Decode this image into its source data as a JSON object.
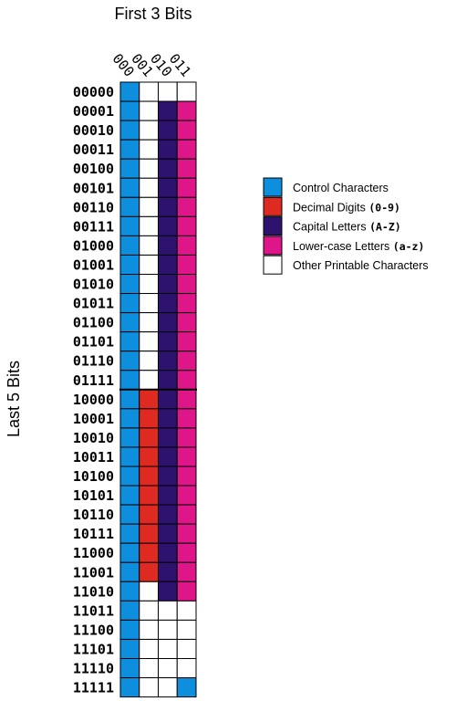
{
  "title_top": "First 3 Bits",
  "title_side": "Last 5 Bits",
  "columns": [
    "000",
    "001",
    "010",
    "011"
  ],
  "rows": [
    "00000",
    "00001",
    "00010",
    "00011",
    "00100",
    "00101",
    "00110",
    "00111",
    "01000",
    "01001",
    "01010",
    "01011",
    "01100",
    "01101",
    "01110",
    "01111",
    "10000",
    "10001",
    "10010",
    "10011",
    "10100",
    "10101",
    "10110",
    "10111",
    "11000",
    "11001",
    "11010",
    "11011",
    "11100",
    "11101",
    "11110",
    "11111"
  ],
  "colors": {
    "control": "#0d8fde",
    "digit": "#df2a22",
    "capital": "#2d136e",
    "lower": "#df1689",
    "other": "#ffffff"
  },
  "grid": [
    [
      "control",
      "other",
      "other",
      "other"
    ],
    [
      "control",
      "other",
      "capital",
      "lower"
    ],
    [
      "control",
      "other",
      "capital",
      "lower"
    ],
    [
      "control",
      "other",
      "capital",
      "lower"
    ],
    [
      "control",
      "other",
      "capital",
      "lower"
    ],
    [
      "control",
      "other",
      "capital",
      "lower"
    ],
    [
      "control",
      "other",
      "capital",
      "lower"
    ],
    [
      "control",
      "other",
      "capital",
      "lower"
    ],
    [
      "control",
      "other",
      "capital",
      "lower"
    ],
    [
      "control",
      "other",
      "capital",
      "lower"
    ],
    [
      "control",
      "other",
      "capital",
      "lower"
    ],
    [
      "control",
      "other",
      "capital",
      "lower"
    ],
    [
      "control",
      "other",
      "capital",
      "lower"
    ],
    [
      "control",
      "other",
      "capital",
      "lower"
    ],
    [
      "control",
      "other",
      "capital",
      "lower"
    ],
    [
      "control",
      "other",
      "capital",
      "lower"
    ],
    [
      "control",
      "digit",
      "capital",
      "lower"
    ],
    [
      "control",
      "digit",
      "capital",
      "lower"
    ],
    [
      "control",
      "digit",
      "capital",
      "lower"
    ],
    [
      "control",
      "digit",
      "capital",
      "lower"
    ],
    [
      "control",
      "digit",
      "capital",
      "lower"
    ],
    [
      "control",
      "digit",
      "capital",
      "lower"
    ],
    [
      "control",
      "digit",
      "capital",
      "lower"
    ],
    [
      "control",
      "digit",
      "capital",
      "lower"
    ],
    [
      "control",
      "digit",
      "capital",
      "lower"
    ],
    [
      "control",
      "digit",
      "capital",
      "lower"
    ],
    [
      "control",
      "other",
      "capital",
      "lower"
    ],
    [
      "control",
      "other",
      "other",
      "other"
    ],
    [
      "control",
      "other",
      "other",
      "other"
    ],
    [
      "control",
      "other",
      "other",
      "other"
    ],
    [
      "control",
      "other",
      "other",
      "other"
    ],
    [
      "control",
      "other",
      "other",
      "control"
    ]
  ],
  "legend": [
    {
      "key": "control",
      "text": "Control Characters",
      "code": ""
    },
    {
      "key": "digit",
      "text": "Decimal Digits ",
      "code": "(0-9)"
    },
    {
      "key": "capital",
      "text": "Capital Letters ",
      "code": "(A-Z)"
    },
    {
      "key": "lower",
      "text": "Lower-case Letters ",
      "code": "(a-z)"
    },
    {
      "key": "other",
      "text": "Other Printable Characters",
      "code": ""
    }
  ]
}
